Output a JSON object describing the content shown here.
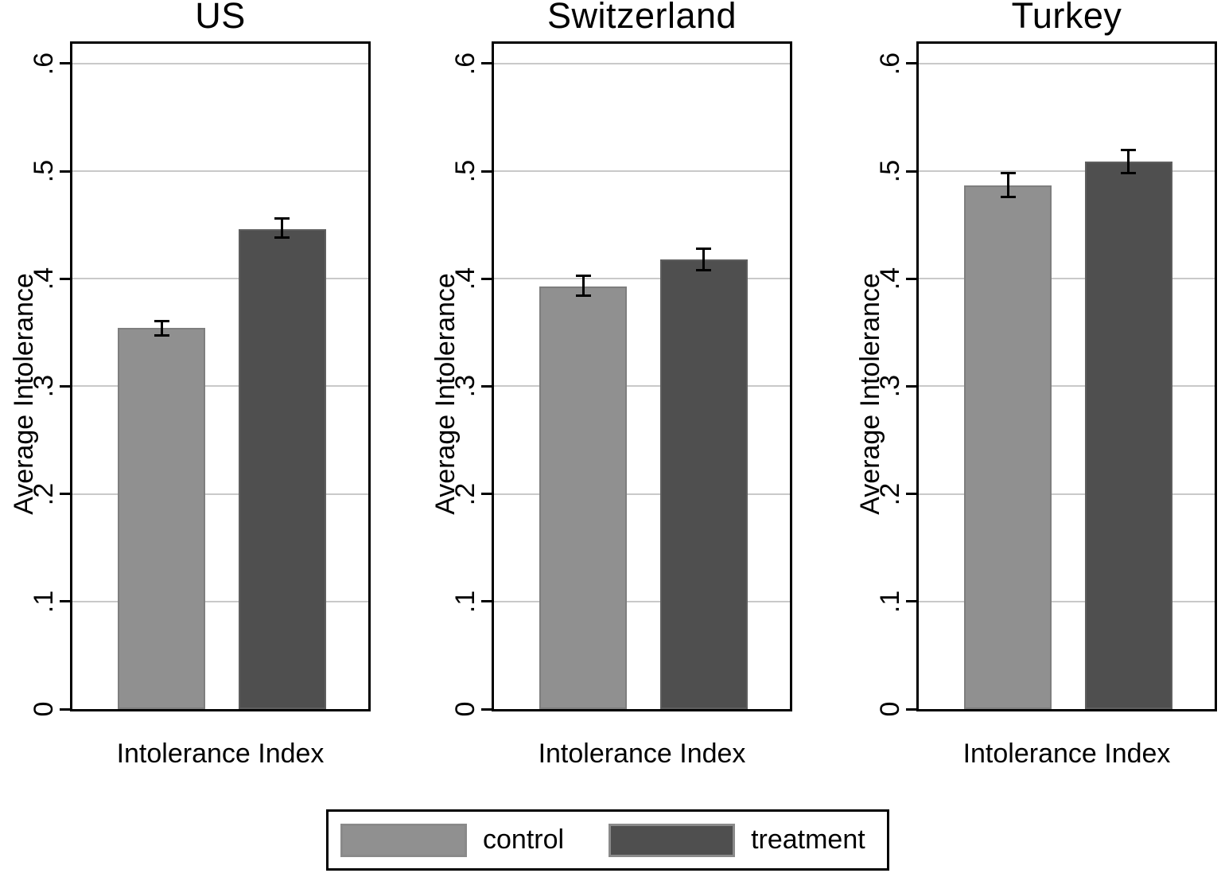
{
  "legend": {
    "items": [
      {
        "label": "control"
      },
      {
        "label": "treatment"
      }
    ]
  },
  "chart_data": {
    "type": "bar",
    "title": "",
    "ylabel": "Average Intolerance",
    "xlabel": "Intolerance Index",
    "ylim": [
      0,
      0.623
    ],
    "yticks": [
      0,
      0.1,
      0.2,
      0.3,
      0.4,
      0.5,
      0.6
    ],
    "ytick_labels": [
      "0",
      ".1",
      ".2",
      ".3",
      ".4",
      ".5",
      ".6"
    ],
    "grid": true,
    "legend_position": "bottom-center",
    "series_names": [
      "control",
      "treatment"
    ],
    "colors": {
      "control": "#909090",
      "control_border": "#7e7e7e",
      "treatment": "#4f4f4f",
      "treatment_border": "#5e5e5e",
      "gridline": "#c9c9c9",
      "axis": "#000000",
      "swatch_border": "#8a8a8a"
    },
    "panels": [
      {
        "title": "US",
        "category": "Intolerance Index",
        "bars": [
          {
            "series": "control",
            "value": 0.354,
            "ci_low": 0.346,
            "ci_high": 0.362
          },
          {
            "series": "treatment",
            "value": 0.446,
            "ci_low": 0.437,
            "ci_high": 0.457
          }
        ]
      },
      {
        "title": "Switzerland",
        "category": "Intolerance Index",
        "bars": [
          {
            "series": "control",
            "value": 0.393,
            "ci_low": 0.383,
            "ci_high": 0.404
          },
          {
            "series": "treatment",
            "value": 0.418,
            "ci_low": 0.407,
            "ci_high": 0.429
          }
        ]
      },
      {
        "title": "Turkey",
        "category": "Intolerance Index",
        "bars": [
          {
            "series": "control",
            "value": 0.487,
            "ci_low": 0.475,
            "ci_high": 0.499
          },
          {
            "series": "treatment",
            "value": 0.509,
            "ci_low": 0.497,
            "ci_high": 0.521
          }
        ]
      }
    ]
  }
}
